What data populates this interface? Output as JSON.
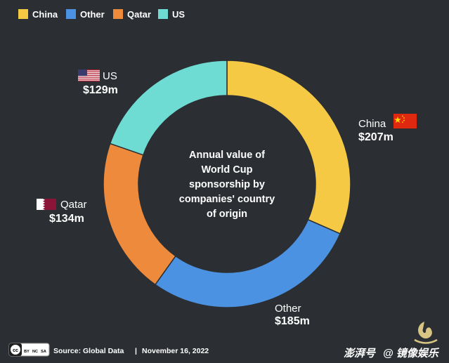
{
  "chart_data": {
    "type": "pie",
    "categories": [
      "China",
      "Other",
      "Qatar",
      "US"
    ],
    "values": [
      207,
      185,
      134,
      129
    ],
    "value_labels": [
      "$207m",
      "$185m",
      "$134m",
      "$129m"
    ],
    "colors": [
      "#f6c945",
      "#4b93e2",
      "#ee8a3c",
      "#6fdcd3"
    ],
    "center_text": [
      "Annual value of",
      "World Cup",
      "sponsorship by",
      "companies' country",
      "of origin"
    ],
    "legend_position": "top-left",
    "donut": true
  },
  "legend": {
    "items": [
      "China",
      "Other",
      "Qatar",
      "US"
    ]
  },
  "footer": {
    "license_badge": [
      "cc",
      "BY",
      "NC",
      "SA"
    ],
    "source": "Source: Global Data",
    "separator": "|",
    "date": "November 16, 2022"
  },
  "watermark": {
    "text": "@ 镜像娱乐"
  },
  "flag_icons": [
    "china-flag-icon",
    "us-flag-icon",
    "qatar-flag-icon"
  ]
}
